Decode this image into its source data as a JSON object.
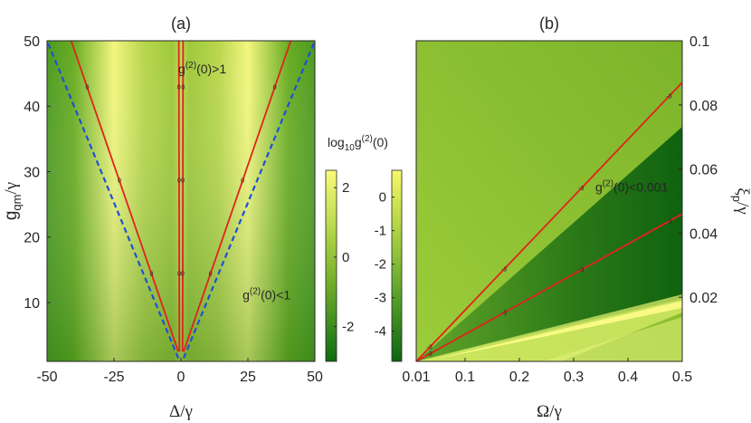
{
  "chart_data": [
    {
      "type": "heatmap",
      "panel": "(a)",
      "xlabel": "Δ/γ",
      "ylabel_main": "g",
      "ylabel_sub": "qm",
      "ylabel_tail": "/γ",
      "xlim": [
        -50,
        50
      ],
      "ylim": [
        1,
        50
      ],
      "x_ticks": [
        -50,
        -25,
        0,
        25,
        50
      ],
      "x_tick_labels": [
        "-50",
        "-25",
        "0",
        "25",
        "50"
      ],
      "y_ticks": [
        10,
        20,
        30,
        40,
        50
      ],
      "y_tick_labels": [
        "10",
        "20",
        "30",
        "40",
        "50"
      ],
      "annotations": [
        {
          "text_main": "g",
          "text_sup": "(2)",
          "text_tail": "(0)>1",
          "x": -1,
          "y": 45
        },
        {
          "text_main": "g",
          "text_sup": "(2)",
          "text_tail": "(0)<1",
          "x": 23,
          "y": 10.5
        }
      ],
      "contour_level_label": "0",
      "contour_lines": [
        {
          "name": "inner-left",
          "points": [
            [
              -0.6,
              2.5
            ],
            [
              -0.8,
              50
            ]
          ]
        },
        {
          "name": "inner-right",
          "points": [
            [
              0.6,
              2.5
            ],
            [
              0.8,
              50
            ]
          ]
        },
        {
          "name": "outer-left",
          "points": [
            [
              -1,
              2.5
            ],
            [
              -41,
              50
            ]
          ]
        },
        {
          "name": "outer-right",
          "points": [
            [
              1,
              2.5
            ],
            [
              41,
              50
            ]
          ]
        }
      ],
      "boundary_lines": [
        {
          "name": "blue-dashed-left",
          "points": [
            [
              -1,
              1.5
            ],
            [
              -50,
              50
            ]
          ]
        },
        {
          "name": "blue-dashed-right",
          "points": [
            [
              1,
              1.5
            ],
            [
              50,
              50
            ]
          ]
        }
      ],
      "colorbar": {
        "label": "",
        "range": [
          -3,
          2.5
        ],
        "ticks": [
          2,
          0,
          -2
        ],
        "tick_labels": [
          "2",
          "0",
          "-2"
        ]
      }
    },
    {
      "type": "heatmap",
      "panel": "(b)",
      "xlabel": "Ω/γ",
      "ylabel_main": "ξ",
      "ylabel_sub": "p",
      "ylabel_tail": "/γ",
      "xlim": [
        0.01,
        0.5
      ],
      "ylim": [
        0,
        0.1
      ],
      "x_ticks": [
        0.01,
        0.1,
        0.2,
        0.3,
        0.4,
        0.5
      ],
      "x_tick_labels": [
        "0.01",
        "0.1",
        "0.2",
        "0.3",
        "0.4",
        "0.5"
      ],
      "y_ticks": [
        0.02,
        0.04,
        0.06,
        0.08,
        0.1
      ],
      "y_tick_labels": [
        "0.02",
        "0.04",
        "0.06",
        "0.08",
        "0.1"
      ],
      "annotations": [
        {
          "text_main": "g",
          "text_sup": "(2)",
          "text_tail": "(0)<0.001",
          "x": 0.34,
          "y": 0.053
        }
      ],
      "contour_level_label": "-3",
      "contour_lines": [
        {
          "name": "upper",
          "points": [
            [
              0.01,
              0.0
            ],
            [
              0.5,
              0.087
            ]
          ]
        },
        {
          "name": "lower",
          "points": [
            [
              0.01,
              0.0
            ],
            [
              0.5,
              0.046
            ]
          ]
        }
      ],
      "colorbar": {
        "label_main": "log",
        "label_sub": "10",
        "label_g": "g",
        "label_sup": "(2)",
        "label_tail": "(0)",
        "range": [
          -4.9,
          0.8
        ],
        "ticks": [
          0,
          -1,
          -2,
          -3,
          -4
        ],
        "tick_labels": [
          "0",
          "-1",
          "-2",
          "-3",
          "-4"
        ]
      }
    }
  ]
}
